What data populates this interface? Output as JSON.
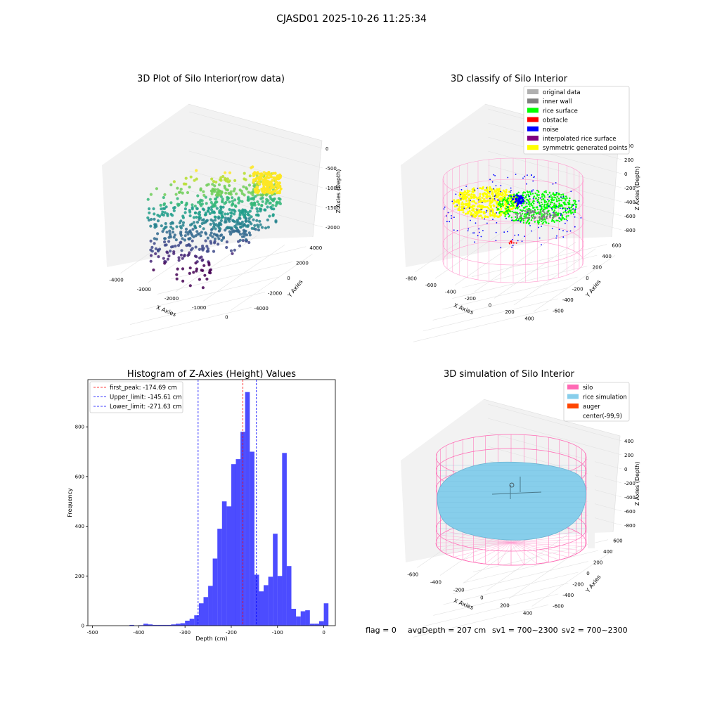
{
  "figure": {
    "suptitle": "CJASD01 2025-10-26 11:25:34",
    "footer": {
      "flag": "flag = 0",
      "avg_depth": "avgDepth = 207 cm",
      "sv1": "sv1 = 700~2300",
      "sv2": "sv2 = 700~2300"
    }
  },
  "panels": {
    "raw": {
      "title": "3D Plot of Silo Interior(row data)",
      "xlabel": "X Axies",
      "ylabel": "Y Axies",
      "zlabel": "Z Axies (Depth)",
      "xticks": [
        "-4000",
        "-3000",
        "-2000",
        "-1000",
        "0"
      ],
      "yticks": [
        "-4000",
        "-2000",
        "0",
        "2000",
        "4000"
      ],
      "zticks": [
        "-2000",
        "-1500",
        "-1000",
        "-500",
        "0"
      ]
    },
    "classify": {
      "title": "3D classify of Silo Interior",
      "xlabel": "X Axies",
      "ylabel": "Y Axies",
      "zlabel": "Z Axies (Depth)",
      "xticks": [
        "-800",
        "-600",
        "-400",
        "-200",
        "0",
        "200",
        "400"
      ],
      "yticks": [
        "-600",
        "-400",
        "-200",
        "0",
        "200",
        "400",
        "600"
      ],
      "zticks": [
        "-800",
        "-600",
        "-400",
        "-200",
        "0",
        "200",
        "400"
      ],
      "legend": [
        {
          "label": "original data",
          "color": "#b0b0b0"
        },
        {
          "label": "inner wall",
          "color": "#808080"
        },
        {
          "label": "rice surface",
          "color": "#00ff00"
        },
        {
          "label": "obstacle",
          "color": "#ff0000"
        },
        {
          "label": "noise",
          "color": "#0000ff"
        },
        {
          "label": "interpolated rice surface",
          "color": "#800080"
        },
        {
          "label": "symmetric generated points",
          "color": "#ffff00"
        }
      ]
    },
    "simulation": {
      "title": "3D simulation of Silo Interior",
      "xlabel": "X Axies",
      "ylabel": "Y Axies",
      "zlabel": "Z Axies (Depth)",
      "xticks": [
        "-600",
        "-400",
        "-200",
        "0",
        "200",
        "400"
      ],
      "yticks": [
        "-600",
        "-400",
        "-200",
        "0",
        "200",
        "400",
        "600"
      ],
      "zticks": [
        "-800",
        "-600",
        "-400",
        "-200",
        "0",
        "200",
        "400"
      ],
      "legend": [
        {
          "label": "silo",
          "color": "#ff69b4"
        },
        {
          "label": "rice simulation",
          "color": "#87ceeb"
        },
        {
          "label": "auger",
          "color": "#ff4500"
        },
        {
          "label": "center(-99,9)",
          "color": "none"
        }
      ]
    }
  },
  "chart_data": [
    {
      "type": "histogram",
      "title": "Histogram of Z-Axies (Height) Values",
      "xlabel": "Depth (cm)",
      "ylabel": "Frequency",
      "xlim": [
        -510,
        25
      ],
      "ylim": [
        0,
        990
      ],
      "xticks": [
        -500,
        -400,
        -300,
        -200,
        -100,
        0
      ],
      "yticks": [
        0,
        200,
        400,
        600,
        800
      ],
      "bar_color": "#0000ff",
      "bin_width": 10,
      "bins": [
        {
          "x0": -420,
          "count": 3
        },
        {
          "x0": -400,
          "count": 2
        },
        {
          "x0": -390,
          "count": 8
        },
        {
          "x0": -380,
          "count": 5
        },
        {
          "x0": -370,
          "count": 3
        },
        {
          "x0": -360,
          "count": 3
        },
        {
          "x0": -350,
          "count": 3
        },
        {
          "x0": -340,
          "count": 3
        },
        {
          "x0": -330,
          "count": 5
        },
        {
          "x0": -320,
          "count": 8
        },
        {
          "x0": -310,
          "count": 10
        },
        {
          "x0": -300,
          "count": 20
        },
        {
          "x0": -290,
          "count": 28
        },
        {
          "x0": -280,
          "count": 42
        },
        {
          "x0": -270,
          "count": 90
        },
        {
          "x0": -260,
          "count": 115
        },
        {
          "x0": -250,
          "count": 160
        },
        {
          "x0": -240,
          "count": 270
        },
        {
          "x0": -230,
          "count": 390
        },
        {
          "x0": -220,
          "count": 500
        },
        {
          "x0": -210,
          "count": 480
        },
        {
          "x0": -200,
          "count": 650
        },
        {
          "x0": -190,
          "count": 670
        },
        {
          "x0": -180,
          "count": 780
        },
        {
          "x0": -170,
          "count": 940
        },
        {
          "x0": -160,
          "count": 700
        },
        {
          "x0": -150,
          "count": 205
        },
        {
          "x0": -140,
          "count": 138
        },
        {
          "x0": -130,
          "count": 163
        },
        {
          "x0": -120,
          "count": 197
        },
        {
          "x0": -110,
          "count": 370
        },
        {
          "x0": -100,
          "count": 200
        },
        {
          "x0": -90,
          "count": 695
        },
        {
          "x0": -80,
          "count": 240
        },
        {
          "x0": -70,
          "count": 68
        },
        {
          "x0": -60,
          "count": 37
        },
        {
          "x0": -50,
          "count": 58
        },
        {
          "x0": -40,
          "count": 62
        },
        {
          "x0": -30,
          "count": 8
        },
        {
          "x0": -20,
          "count": 8
        },
        {
          "x0": -10,
          "count": 18
        },
        {
          "x0": 0,
          "count": 90
        }
      ],
      "vlines": [
        {
          "label": "first_peak: -174.69 cm",
          "x": -174.69,
          "color": "#ff0000"
        },
        {
          "label": "Upper_limit: -145.61 cm",
          "x": -145.61,
          "color": "#0000ff"
        },
        {
          "label": "Lower_limit: -271.63 cm",
          "x": -271.63,
          "color": "#0000ff"
        }
      ],
      "legend_position": "upper left"
    }
  ]
}
